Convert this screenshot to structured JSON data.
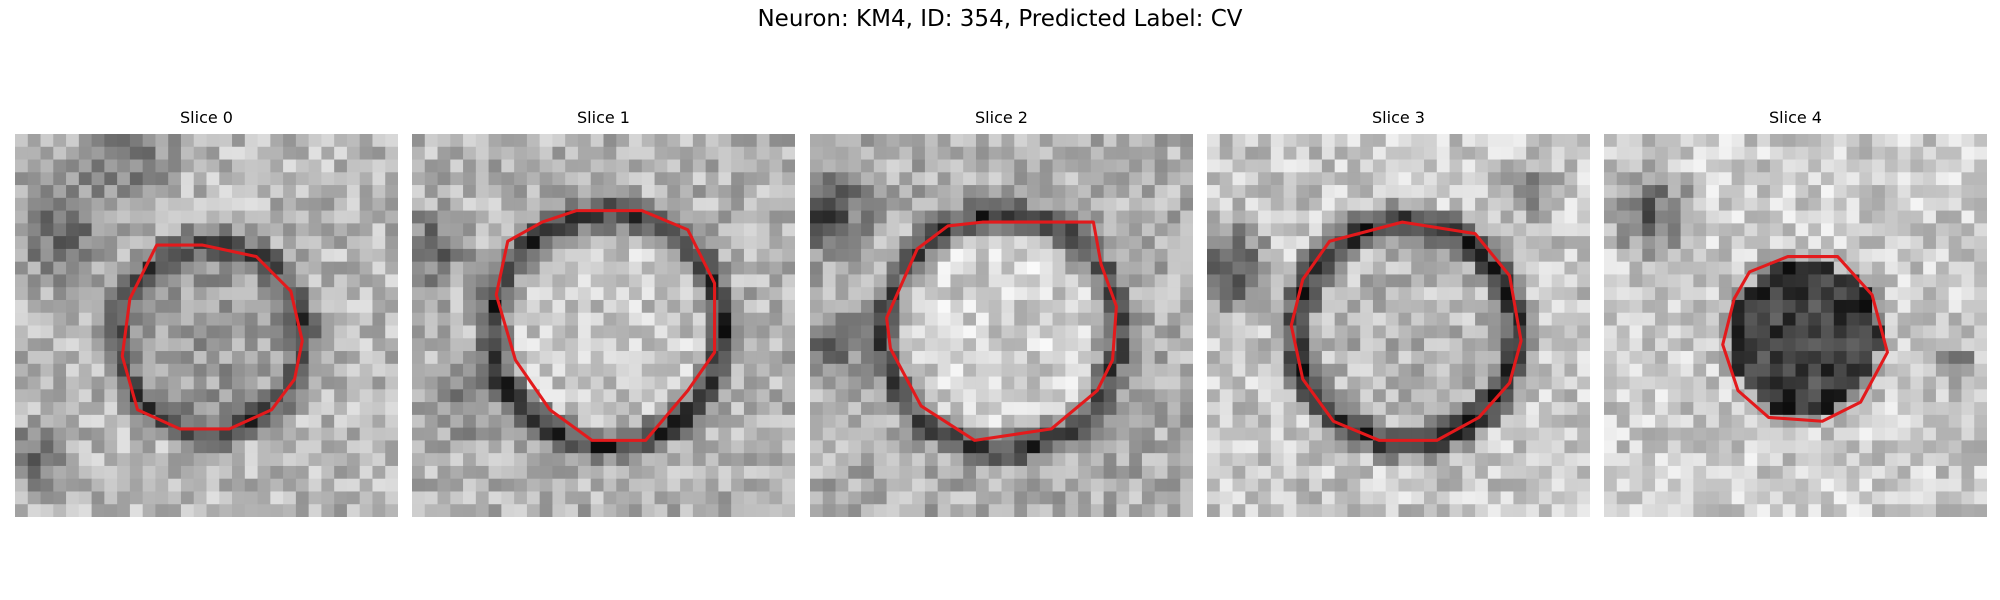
{
  "figure": {
    "title": "Neuron: KM4, ID: 354, Predicted Label: CV"
  },
  "colors": {
    "contour": "#e31a1c",
    "colormap": "grayscale"
  },
  "panels": [
    {
      "title": "Slice 0",
      "contour": [
        [
          0.37,
          0.29
        ],
        [
          0.49,
          0.29
        ],
        [
          0.63,
          0.32
        ],
        [
          0.72,
          0.41
        ],
        [
          0.75,
          0.54
        ],
        [
          0.73,
          0.64
        ],
        [
          0.67,
          0.72
        ],
        [
          0.56,
          0.77
        ],
        [
          0.43,
          0.77
        ],
        [
          0.32,
          0.72
        ],
        [
          0.28,
          0.58
        ],
        [
          0.3,
          0.43
        ]
      ]
    },
    {
      "title": "Slice 1",
      "contour": [
        [
          0.43,
          0.2
        ],
        [
          0.6,
          0.2
        ],
        [
          0.72,
          0.25
        ],
        [
          0.79,
          0.39
        ],
        [
          0.79,
          0.57
        ],
        [
          0.72,
          0.67
        ],
        [
          0.61,
          0.8
        ],
        [
          0.47,
          0.8
        ],
        [
          0.36,
          0.72
        ],
        [
          0.27,
          0.59
        ],
        [
          0.22,
          0.42
        ],
        [
          0.25,
          0.28
        ],
        [
          0.34,
          0.23
        ]
      ]
    },
    {
      "title": "Slice 2",
      "contour": [
        [
          0.36,
          0.24
        ],
        [
          0.45,
          0.23
        ],
        [
          0.74,
          0.23
        ],
        [
          0.76,
          0.34
        ],
        [
          0.8,
          0.45
        ],
        [
          0.79,
          0.59
        ],
        [
          0.75,
          0.67
        ],
        [
          0.63,
          0.77
        ],
        [
          0.43,
          0.8
        ],
        [
          0.29,
          0.71
        ],
        [
          0.21,
          0.56
        ],
        [
          0.2,
          0.48
        ],
        [
          0.24,
          0.39
        ],
        [
          0.28,
          0.3
        ]
      ]
    },
    {
      "title": "Slice 3",
      "contour": [
        [
          0.32,
          0.28
        ],
        [
          0.51,
          0.23
        ],
        [
          0.7,
          0.26
        ],
        [
          0.79,
          0.37
        ],
        [
          0.82,
          0.54
        ],
        [
          0.79,
          0.65
        ],
        [
          0.71,
          0.74
        ],
        [
          0.6,
          0.8
        ],
        [
          0.45,
          0.8
        ],
        [
          0.33,
          0.75
        ],
        [
          0.25,
          0.64
        ],
        [
          0.22,
          0.5
        ],
        [
          0.25,
          0.38
        ]
      ]
    },
    {
      "title": "Slice 4",
      "contour": [
        [
          0.38,
          0.36
        ],
        [
          0.48,
          0.32
        ],
        [
          0.61,
          0.32
        ],
        [
          0.7,
          0.42
        ],
        [
          0.74,
          0.57
        ],
        [
          0.67,
          0.7
        ],
        [
          0.57,
          0.75
        ],
        [
          0.43,
          0.74
        ],
        [
          0.35,
          0.67
        ],
        [
          0.31,
          0.55
        ],
        [
          0.34,
          0.43
        ]
      ]
    }
  ]
}
